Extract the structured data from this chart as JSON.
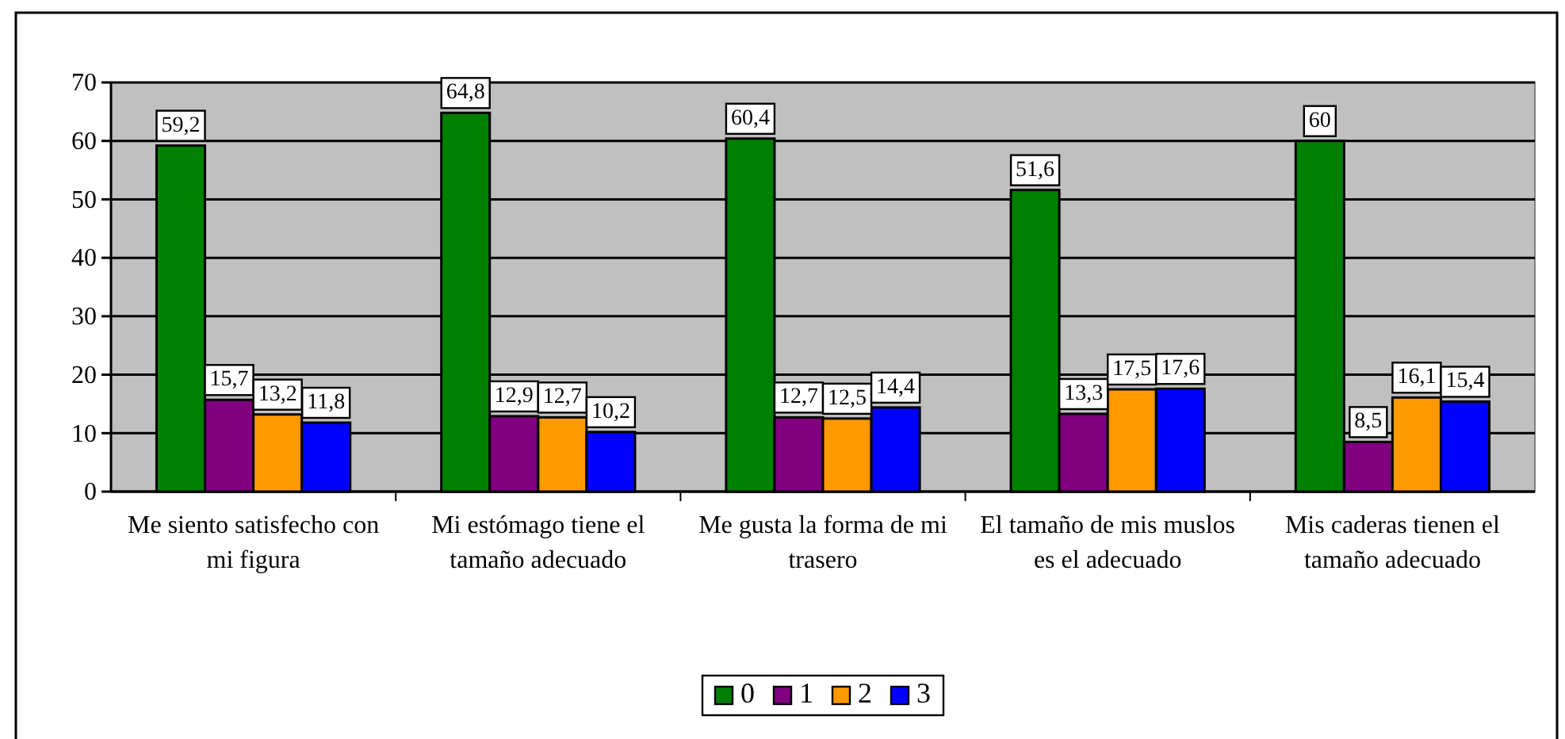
{
  "chart_data": {
    "type": "bar",
    "categories": [
      "Me siento satisfecho con mi figura",
      "Mi estómago tiene el tamaño adecuado",
      "Me gusta la forma de mi trasero",
      "El tamaño de mis muslos es el adecuado",
      "Mis caderas tienen el tamaño adecuado"
    ],
    "series": [
      {
        "name": "0",
        "color": "#008000",
        "values": [
          59.2,
          64.8,
          60.4,
          51.6,
          60
        ],
        "value_labels": [
          "59,2",
          "64,8",
          "60,4",
          "51,6",
          "60"
        ]
      },
      {
        "name": "1",
        "color": "#800080",
        "values": [
          15.7,
          12.9,
          12.7,
          13.3,
          8.5
        ],
        "value_labels": [
          "15,7",
          "12,9",
          "12,7",
          "13,3",
          "8,5"
        ]
      },
      {
        "name": "2",
        "color": "#ff9900",
        "values": [
          13.2,
          12.7,
          12.5,
          17.5,
          16.1
        ],
        "value_labels": [
          "13,2",
          "12,7",
          "12,5",
          "17,5",
          "16,1"
        ]
      },
      {
        "name": "3",
        "color": "#0000ff",
        "values": [
          11.8,
          10.2,
          14.4,
          17.6,
          15.4
        ],
        "value_labels": [
          "11,8",
          "10,2",
          "14,4",
          "17,6",
          "15,4"
        ]
      }
    ],
    "ylim": [
      0,
      70
    ],
    "yticks": [
      0,
      10,
      20,
      30,
      40,
      50,
      60,
      70
    ],
    "grid": "y",
    "legend": "bottom"
  }
}
